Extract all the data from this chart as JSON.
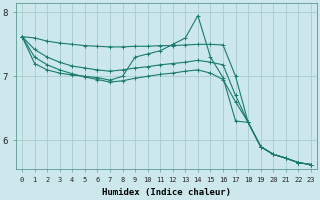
{
  "xlabel": "Humidex (Indice chaleur)",
  "background_color": "#cce8ec",
  "grid_color": "#aacccc",
  "line_color": "#1a7a6e",
  "xlim": [
    -0.5,
    23.5
  ],
  "ylim": [
    5.55,
    8.15
  ],
  "yticks": [
    6,
    7,
    8
  ],
  "xtick_labels": [
    "0",
    "1",
    "2",
    "3",
    "4",
    "5",
    "6",
    "7",
    "8",
    "9",
    "10",
    "11",
    "12",
    "13",
    "14",
    "15",
    "16",
    "17",
    "18",
    "19",
    "20",
    "21",
    "22",
    "23"
  ],
  "series": [
    {
      "x": [
        0,
        1,
        2,
        3,
        4,
        5,
        6,
        7,
        8,
        9,
        10,
        11,
        12,
        13,
        14,
        15,
        16,
        17,
        18,
        19,
        20,
        21,
        22,
        23
      ],
      "y": [
        7.62,
        7.6,
        7.55,
        7.52,
        7.5,
        7.48,
        7.47,
        7.46,
        7.46,
        7.47,
        7.47,
        7.48,
        7.48,
        7.49,
        7.5,
        7.5,
        7.49,
        7.0,
        6.28,
        5.9,
        5.78,
        5.72,
        5.65,
        5.62
      ]
    },
    {
      "x": [
        0,
        1,
        2,
        3,
        4,
        5,
        6,
        7,
        8,
        9,
        10,
        11,
        12,
        13,
        14,
        15,
        16,
        17,
        18,
        19,
        20,
        21,
        22,
        23
      ],
      "y": [
        7.62,
        7.42,
        7.3,
        7.22,
        7.16,
        7.13,
        7.1,
        7.08,
        7.1,
        7.13,
        7.15,
        7.18,
        7.2,
        7.22,
        7.25,
        7.22,
        7.18,
        6.7,
        6.28,
        5.9,
        5.78,
        5.72,
        5.65,
        5.62
      ]
    },
    {
      "x": [
        0,
        1,
        2,
        3,
        4,
        5,
        6,
        7,
        8,
        9,
        10,
        11,
        12,
        13,
        14,
        15,
        16,
        17,
        18,
        19,
        20,
        21,
        22,
        23
      ],
      "y": [
        7.62,
        7.3,
        7.18,
        7.1,
        7.04,
        6.99,
        6.95,
        6.91,
        6.93,
        6.97,
        7.0,
        7.03,
        7.05,
        7.08,
        7.1,
        7.05,
        6.95,
        6.6,
        6.28,
        5.9,
        5.78,
        5.72,
        5.65,
        5.62
      ]
    },
    {
      "x": [
        0,
        1,
        2,
        3,
        4,
        5,
        6,
        7,
        8,
        9,
        10,
        11,
        12,
        13,
        14,
        15,
        16,
        17,
        18,
        19,
        20,
        21,
        22,
        23
      ],
      "y": [
        7.62,
        7.2,
        7.1,
        7.05,
        7.02,
        7.0,
        6.98,
        6.94,
        7.0,
        7.3,
        7.35,
        7.4,
        7.5,
        7.6,
        7.95,
        7.3,
        6.98,
        6.3,
        6.28,
        5.9,
        5.78,
        5.72,
        5.65,
        5.62
      ]
    }
  ]
}
